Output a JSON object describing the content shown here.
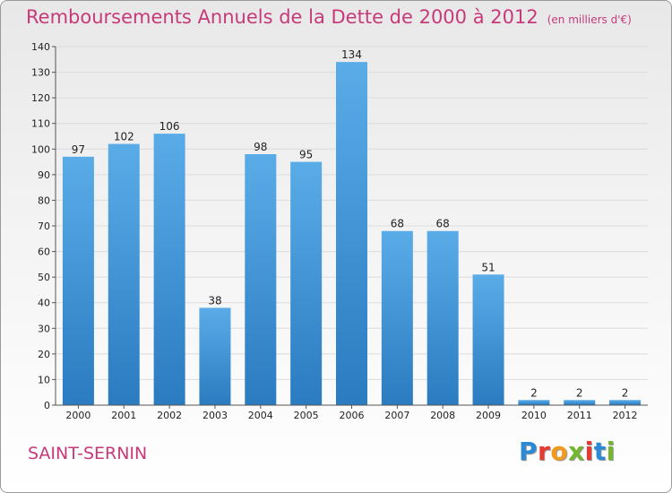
{
  "header": {
    "title": "Remboursements Annuels de la Dette de 2000 à 2012",
    "unit": "(en milliers d'€)"
  },
  "footer": {
    "place": "SAINT-SERNIN",
    "logo": {
      "letters": [
        "P",
        "r",
        "o",
        "x",
        "i",
        "t",
        "i"
      ],
      "colors": [
        "#2b8ad6",
        "#e9382f",
        "#f29a1e",
        "#74b72e",
        "#e9382f",
        "#2b8ad6",
        "#74b72e"
      ]
    }
  },
  "chart_data": {
    "type": "bar",
    "title": "Remboursements Annuels de la Dette de 2000 à 2012",
    "categories": [
      "2000",
      "2001",
      "2002",
      "2003",
      "2004",
      "2005",
      "2006",
      "2007",
      "2008",
      "2009",
      "2010",
      "2011",
      "2012"
    ],
    "values": [
      97,
      102,
      106,
      38,
      98,
      95,
      134,
      68,
      68,
      51,
      2,
      2,
      2
    ],
    "data_labels": [
      "97",
      "102",
      "106",
      "38",
      "98",
      "95",
      "134",
      "68",
      "68",
      "51",
      "2",
      "2",
      "2"
    ],
    "ylim": [
      0,
      140
    ],
    "yticks": [
      0,
      10,
      20,
      30,
      40,
      50,
      60,
      70,
      80,
      90,
      100,
      110,
      120,
      130,
      140
    ],
    "grid": true,
    "colors": {
      "bar_top": "#5aace8",
      "bar_bottom": "#2a7bc0",
      "grid": "#dcdcdc"
    }
  }
}
